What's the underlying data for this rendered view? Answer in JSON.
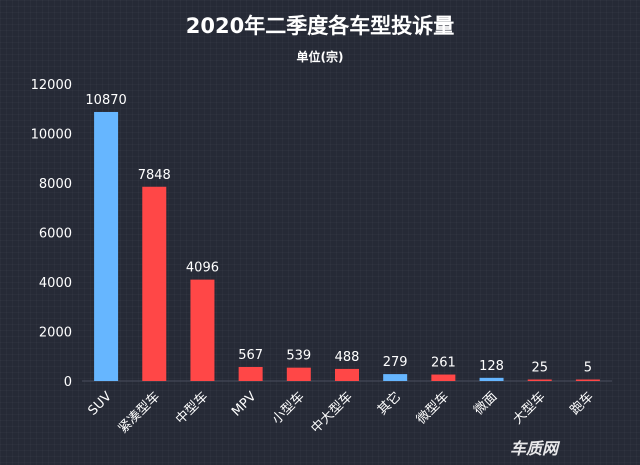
{
  "chart_data": {
    "type": "bar",
    "title": "2020年二季度各车型投诉量",
    "subtitle": "单位(宗)",
    "categories": [
      "SUV",
      "紧凑型车",
      "中型车",
      "MPV",
      "小型车",
      "中大型车",
      "其它",
      "微型车",
      "微面",
      "大型车",
      "跑车"
    ],
    "values": [
      10870,
      7848,
      4096,
      567,
      539,
      488,
      279,
      261,
      128,
      25,
      5
    ],
    "data_labels": [
      "10870",
      "7848",
      "4096",
      "567",
      "539",
      "488",
      "279",
      "261",
      "128",
      "25",
      "5"
    ],
    "bar_colors": [
      "#66b6ff",
      "#ff4747",
      "#ff4747",
      "#ff4747",
      "#ff4747",
      "#ff4747",
      "#66b6ff",
      "#ff4747",
      "#66b6ff",
      "#ff4747",
      "#ff4747"
    ],
    "ylim": [
      0,
      12000
    ],
    "yticks": [
      "0",
      "2000",
      "4000",
      "6000",
      "8000",
      "10000",
      "12000"
    ],
    "xlabel": "",
    "ylabel": "",
    "grid": false,
    "legend": "none"
  },
  "watermark": "车质网",
  "colors": {
    "background": "#262a36",
    "text": "#ffffff",
    "blue": "#66b6ff",
    "red": "#ff4747"
  }
}
